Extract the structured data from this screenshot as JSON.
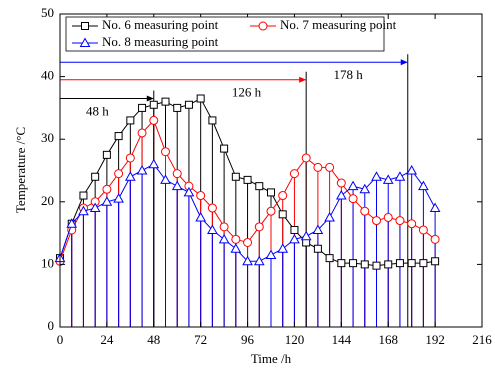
{
  "chart_data": {
    "type": "line",
    "x": [
      0,
      6,
      12,
      18,
      24,
      30,
      36,
      42,
      48,
      54,
      60,
      66,
      72,
      78,
      84,
      90,
      96,
      102,
      108,
      114,
      120,
      126,
      132,
      138,
      144,
      150,
      156,
      162,
      168,
      174,
      180,
      186,
      192
    ],
    "series": [
      {
        "name": "No. 6 measuring point",
        "color": "#000000",
        "marker": "square",
        "values": [
          11,
          16.5,
          21,
          24,
          27.5,
          30.5,
          33,
          35,
          35.5,
          36,
          35,
          35.5,
          36.5,
          33,
          28.5,
          24,
          23.5,
          22.5,
          21.5,
          18,
          15.5,
          13.5,
          12.5,
          11,
          10.2,
          10.2,
          10,
          9.8,
          10,
          10.2,
          10.2,
          10.2,
          10.5
        ]
      },
      {
        "name": "No. 7 measuring point",
        "color": "#ff0000",
        "marker": "circle",
        "values": [
          10.5,
          15.5,
          19,
          20,
          22,
          24.5,
          27,
          31,
          33,
          28,
          24.5,
          22.5,
          21,
          19,
          16,
          14,
          13.5,
          16,
          18.5,
          21,
          24.5,
          27,
          25.5,
          25.5,
          23,
          20.5,
          18.5,
          17,
          17.5,
          17,
          16.5,
          15.5,
          14
        ]
      },
      {
        "name": "No. 8 measuring point",
        "color": "#0000ff",
        "marker": "triangle",
        "values": [
          11,
          16.5,
          18.5,
          19,
          20,
          20.5,
          24,
          25,
          26,
          23.5,
          22.5,
          21.5,
          17.5,
          15.5,
          14,
          12.5,
          10.5,
          10.5,
          11.5,
          12.5,
          14,
          14.5,
          15.5,
          17.5,
          21,
          22.5,
          22,
          24,
          23.5,
          24,
          25,
          22.5,
          19
        ]
      }
    ],
    "annotations": [
      {
        "label": "48 h",
        "x": 48,
        "y": 36.5,
        "color": "#000000"
      },
      {
        "label": "126 h",
        "x": 126,
        "y": 39.5,
        "color": "#ff0000"
      },
      {
        "label": "178 h",
        "x": 178,
        "y": 42.3,
        "color": "#0000ff"
      }
    ],
    "xlabel": "Time /h",
    "ylabel": "Temperature /°C",
    "xlim": [
      0,
      216
    ],
    "xticks": [
      0,
      24,
      48,
      72,
      96,
      120,
      144,
      168,
      192,
      216
    ],
    "ylim": [
      0,
      50
    ],
    "yticks": [
      0,
      10,
      20,
      30,
      40,
      50
    ]
  }
}
